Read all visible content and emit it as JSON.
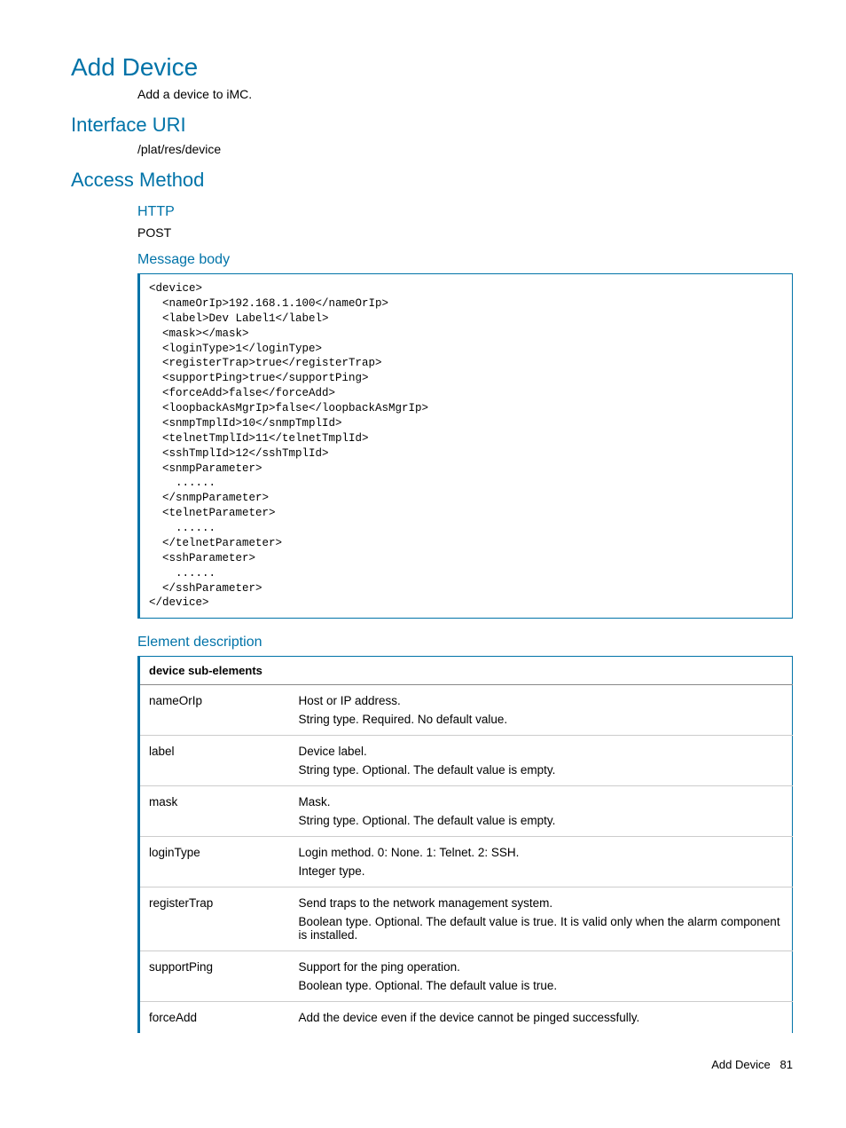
{
  "page": {
    "title": "Add Device",
    "intro": "Add a device to iMC.",
    "footer_label": "Add Device",
    "footer_page": "81"
  },
  "interface_uri": {
    "heading": "Interface URI",
    "value": "/plat/res/device"
  },
  "access_method": {
    "heading": "Access Method",
    "http_heading": "HTTP",
    "http_value": "POST",
    "message_body_heading": "Message body",
    "code": "<device>\n  <nameOrIp>192.168.1.100</nameOrIp>\n  <label>Dev Label1</label>\n  <mask></mask>\n  <loginType>1</loginType>\n  <registerTrap>true</registerTrap>\n  <supportPing>true</supportPing>\n  <forceAdd>false</forceAdd>\n  <loopbackAsMgrIp>false</loopbackAsMgrIp>\n  <snmpTmplId>10</snmpTmplId>\n  <telnetTmplId>11</telnetTmplId>\n  <sshTmplId>12</sshTmplId>\n  <snmpParameter>\n    ......\n  </snmpParameter>\n  <telnetParameter>\n    ......\n  </telnetParameter>\n  <sshParameter>\n    ......\n  </sshParameter>\n</device>"
  },
  "element_description": {
    "heading": "Element description",
    "table_header": "device sub-elements",
    "rows": [
      {
        "name": "nameOrIp",
        "d1": "Host or IP address.",
        "d2": "String type. Required. No default value."
      },
      {
        "name": "label",
        "d1": "Device label.",
        "d2": "String type. Optional. The default value is empty."
      },
      {
        "name": "mask",
        "d1": "Mask.",
        "d2": "String type. Optional. The default value is empty."
      },
      {
        "name": "loginType",
        "d1": "Login method. 0: None. 1: Telnet. 2: SSH.",
        "d2": "Integer type."
      },
      {
        "name": "registerTrap",
        "d1": "Send traps to the network management system.",
        "d2": "Boolean type. Optional. The default value is true. It is valid only when the alarm component is installed."
      },
      {
        "name": "supportPing",
        "d1": "Support for the ping operation.",
        "d2": "Boolean type. Optional. The default value is true."
      },
      {
        "name": "forceAdd",
        "d1": "Add the device even if the device cannot be pinged successfully.",
        "d2": ""
      }
    ]
  }
}
